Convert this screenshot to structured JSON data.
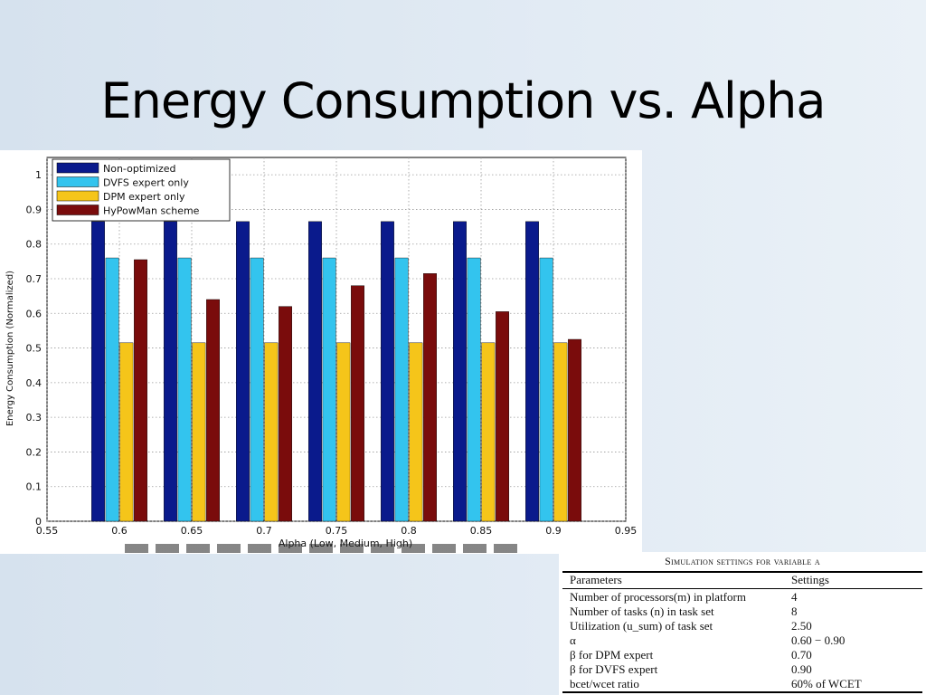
{
  "slide": {
    "title": "Energy Consumption vs. Alpha"
  },
  "chart_data": {
    "type": "bar",
    "title": "",
    "xlabel": "Alpha (Low, Medium, High)",
    "ylabel": "Energy Consumption (Normalized)",
    "x_ticks": [
      "0.55",
      "0.6",
      "0.65",
      "0.7",
      "0.75",
      "0.8",
      "0.85",
      "0.9",
      "0.95"
    ],
    "y_ticks": [
      "0",
      "0.1",
      "0.2",
      "0.3",
      "0.4",
      "0.5",
      "0.6",
      "0.7",
      "0.8",
      "0.9",
      "1"
    ],
    "xlim": [
      0.55,
      0.95
    ],
    "ylim": [
      0,
      1.05
    ],
    "grid": true,
    "legend_position": "top-left",
    "categories": [
      0.6,
      0.65,
      0.7,
      0.75,
      0.8,
      0.85,
      0.9
    ],
    "series": [
      {
        "name": "Non-optimized",
        "color": "#0a1a8c",
        "values": [
          0.865,
          0.865,
          0.865,
          0.865,
          0.865,
          0.865,
          0.865
        ]
      },
      {
        "name": "DVFS expert only",
        "color": "#33c4ee",
        "values": [
          0.76,
          0.76,
          0.76,
          0.76,
          0.76,
          0.76,
          0.76
        ]
      },
      {
        "name": "DPM expert only",
        "color": "#f5c51a",
        "values": [
          0.515,
          0.515,
          0.515,
          0.515,
          0.515,
          0.515,
          0.515
        ]
      },
      {
        "name": "HyPowMan scheme",
        "color": "#7a0c0c",
        "values": [
          0.755,
          0.64,
          0.62,
          0.68,
          0.715,
          0.605,
          0.525
        ]
      }
    ]
  },
  "table": {
    "caption": "Simulation settings for variable α",
    "headers": [
      "Parameters",
      "Settings"
    ],
    "rows": [
      [
        "Number of processors(m) in platform",
        "4"
      ],
      [
        "Number of tasks (n) in task set",
        "8"
      ],
      [
        "Utilization (u_sum) of task set",
        "2.50"
      ],
      [
        "α",
        "0.60 − 0.90"
      ],
      [
        "β for DPM expert",
        "0.70"
      ],
      [
        "β for DVFS expert",
        "0.90"
      ],
      [
        "bcet/wcet ratio",
        "60% of WCET"
      ]
    ]
  }
}
